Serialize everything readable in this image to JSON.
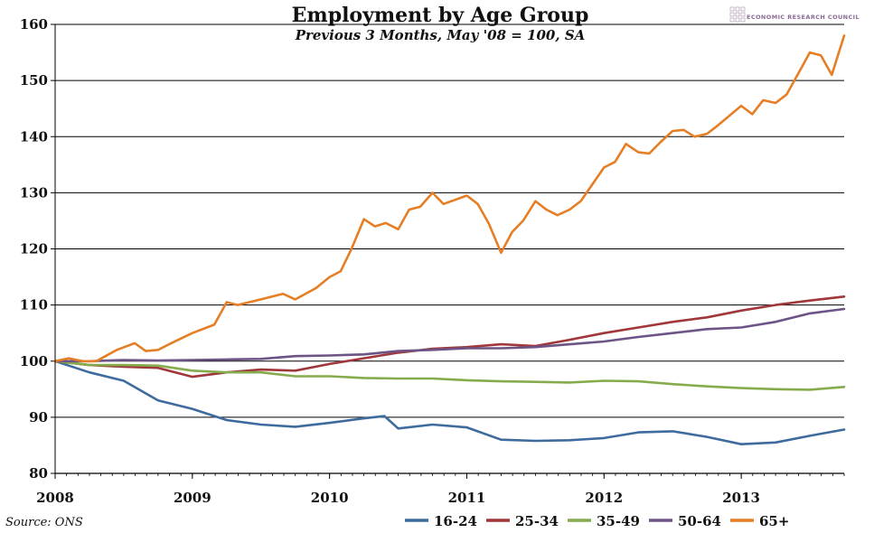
{
  "colors": {
    "16-24": "#3e6b9e",
    "25-34": "#a0373a",
    "35-49": "#86ab4c",
    "50-64": "#6c5487",
    "65+": "#e57e25",
    "brand": "#8a6a92"
  },
  "header": {
    "brand": "ECONOMIC RESEARCH COUNCIL"
  },
  "footer": {
    "source": "Source: ONS"
  },
  "chart_data": {
    "type": "line",
    "title": "Employment by Age Group",
    "subtitle": "Previous 3 Months, May '08 = 100, SA",
    "xlabel": "",
    "ylabel": "",
    "ylim": [
      80,
      160
    ],
    "xlim": [
      2008,
      2013.75
    ],
    "y_ticks": [
      "80",
      "90",
      "100",
      "110",
      "120",
      "130",
      "140",
      "150",
      "160"
    ],
    "x_ticks": [
      "2008",
      "2009",
      "2010",
      "2011",
      "2012",
      "2013"
    ],
    "grid": true,
    "legend_position": "bottom-right",
    "series": [
      {
        "name": "16-24",
        "x": [
          2008.0,
          2008.25,
          2008.5,
          2008.75,
          2009.0,
          2009.25,
          2009.5,
          2009.75,
          2010.0,
          2010.25,
          2010.4,
          2010.5,
          2010.75,
          2011.0,
          2011.25,
          2011.5,
          2011.75,
          2012.0,
          2012.25,
          2012.5,
          2012.75,
          2013.0,
          2013.25,
          2013.5,
          2013.75
        ],
        "values": [
          100,
          98,
          96.5,
          93,
          91.5,
          89.5,
          88.7,
          88.3,
          89,
          89.8,
          90.2,
          88,
          88.7,
          88.2,
          86,
          85.8,
          85.9,
          86.3,
          87.3,
          87.5,
          86.5,
          85.2,
          85.5,
          86.7,
          87.8
        ]
      },
      {
        "name": "25-34",
        "x": [
          2008.0,
          2008.25,
          2008.5,
          2008.75,
          2009.0,
          2009.25,
          2009.5,
          2009.75,
          2010.0,
          2010.25,
          2010.5,
          2010.75,
          2011.0,
          2011.25,
          2011.5,
          2011.75,
          2012.0,
          2012.25,
          2012.5,
          2012.75,
          2013.0,
          2013.25,
          2013.5,
          2013.75
        ],
        "values": [
          100,
          99.3,
          99,
          98.8,
          97.2,
          98,
          98.5,
          98.3,
          99.5,
          100.5,
          101.5,
          102.2,
          102.5,
          103,
          102.7,
          103.8,
          105,
          106,
          107,
          107.8,
          109,
          110,
          110.8,
          111.5
        ]
      },
      {
        "name": "35-49",
        "x": [
          2008.0,
          2008.25,
          2008.5,
          2008.75,
          2009.0,
          2009.25,
          2009.5,
          2009.75,
          2010.0,
          2010.25,
          2010.5,
          2010.75,
          2011.0,
          2011.25,
          2011.5,
          2011.75,
          2012.0,
          2012.25,
          2012.5,
          2012.75,
          2013.0,
          2013.25,
          2013.5,
          2013.75
        ],
        "values": [
          100,
          99.3,
          99.3,
          99.2,
          98.3,
          98,
          98,
          97.3,
          97.3,
          97,
          96.9,
          96.9,
          96.6,
          96.4,
          96.3,
          96.2,
          96.5,
          96.4,
          95.9,
          95.5,
          95.2,
          95,
          94.9,
          95.4
        ]
      },
      {
        "name": "50-64",
        "x": [
          2008.0,
          2008.25,
          2008.5,
          2008.75,
          2009.0,
          2009.25,
          2009.5,
          2009.75,
          2010.0,
          2010.25,
          2010.5,
          2010.75,
          2011.0,
          2011.25,
          2011.5,
          2011.75,
          2012.0,
          2012.25,
          2012.5,
          2012.75,
          2013.0,
          2013.25,
          2013.5,
          2013.75
        ],
        "values": [
          100,
          100,
          100.2,
          100.1,
          100.2,
          100.3,
          100.4,
          100.9,
          101,
          101.2,
          101.8,
          102,
          102.3,
          102.3,
          102.5,
          103,
          103.5,
          104.3,
          105,
          105.7,
          106,
          107,
          108.5,
          109.3
        ]
      },
      {
        "name": "65+",
        "x": [
          2008.0,
          2008.1,
          2008.2,
          2008.3,
          2008.45,
          2008.58,
          2008.66,
          2008.75,
          2008.83,
          2009.0,
          2009.16,
          2009.25,
          2009.33,
          2009.5,
          2009.66,
          2009.75,
          2009.9,
          2010.0,
          2010.08,
          2010.16,
          2010.25,
          2010.33,
          2010.41,
          2010.5,
          2010.58,
          2010.66,
          2010.75,
          2010.83,
          2011.0,
          2011.08,
          2011.16,
          2011.25,
          2011.33,
          2011.41,
          2011.5,
          2011.58,
          2011.66,
          2011.75,
          2011.83,
          2012.0,
          2012.08,
          2012.16,
          2012.25,
          2012.33,
          2012.41,
          2012.5,
          2012.58,
          2012.66,
          2012.75,
          2012.83,
          2013.0,
          2013.08,
          2013.16,
          2013.25,
          2013.33,
          2013.41,
          2013.5,
          2013.58,
          2013.66,
          2013.75
        ],
        "values": [
          100,
          100.5,
          100,
          100,
          102,
          103.2,
          101.8,
          102,
          103,
          105,
          106.5,
          110.5,
          110,
          111,
          112,
          111,
          113,
          115,
          116,
          120,
          125.3,
          124,
          124.6,
          123.5,
          127,
          127.5,
          130,
          128,
          129.5,
          128,
          124.5,
          119.3,
          123,
          125,
          128.5,
          127,
          126,
          127,
          128.5,
          134.5,
          135.5,
          138.7,
          137.2,
          137,
          139,
          141,
          141.2,
          140,
          140.5,
          142,
          145.5,
          144,
          146.5,
          146,
          147.5,
          151,
          155,
          154.5,
          151,
          158
        ]
      }
    ]
  }
}
